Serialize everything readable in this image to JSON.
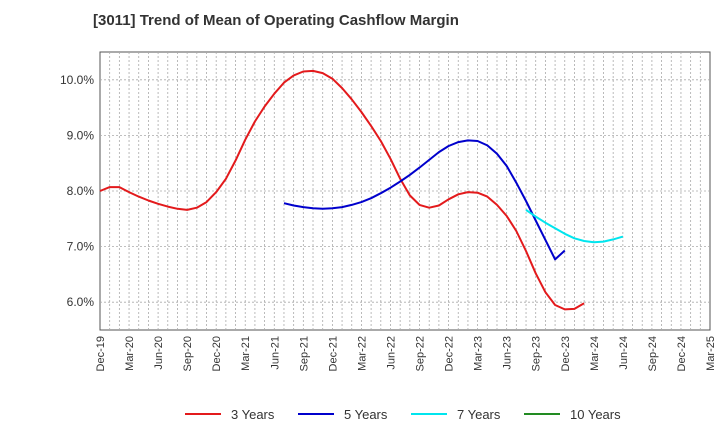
{
  "chart_data": {
    "type": "line",
    "title": "[3011]  Trend of Mean of Operating Cashflow Margin",
    "xlabel": "",
    "ylabel": "",
    "x_ticks": [
      "Dec-19",
      "Mar-20",
      "Jun-20",
      "Sep-20",
      "Dec-20",
      "Mar-21",
      "Jun-21",
      "Sep-21",
      "Dec-21",
      "Mar-22",
      "Jun-22",
      "Sep-22",
      "Dec-22",
      "Mar-23",
      "Jun-23",
      "Sep-23",
      "Dec-23",
      "Mar-24",
      "Jun-24",
      "Sep-24",
      "Dec-24",
      "Mar-25"
    ],
    "y_ticks": [
      "6.0%",
      "7.0%",
      "8.0%",
      "9.0%",
      "10.0%"
    ],
    "y_tick_values": [
      6.0,
      7.0,
      8.0,
      9.0,
      10.0
    ],
    "ylim": [
      5.5,
      10.5
    ],
    "grid": true,
    "legend_position": "bottom",
    "series": [
      {
        "name": "3 Years",
        "color": "#e31a1c",
        "values": [
          [
            "Dec-19",
            8.0
          ],
          [
            "Jan-20",
            8.07
          ],
          [
            "Feb-20",
            8.07
          ],
          [
            "Mar-20",
            7.98
          ],
          [
            "Apr-20",
            7.9
          ],
          [
            "May-20",
            7.83
          ],
          [
            "Jun-20",
            7.77
          ],
          [
            "Jul-20",
            7.72
          ],
          [
            "Aug-20",
            7.68
          ],
          [
            "Sep-20",
            7.66
          ],
          [
            "Oct-20",
            7.7
          ],
          [
            "Nov-20",
            7.8
          ],
          [
            "Dec-20",
            7.98
          ],
          [
            "Jan-21",
            8.22
          ],
          [
            "Feb-21",
            8.55
          ],
          [
            "Mar-21",
            8.92
          ],
          [
            "Apr-21",
            9.25
          ],
          [
            "May-21",
            9.52
          ],
          [
            "Jun-21",
            9.75
          ],
          [
            "Jul-21",
            9.95
          ],
          [
            "Aug-21",
            10.08
          ],
          [
            "Sep-21",
            10.15
          ],
          [
            "Oct-21",
            10.16
          ],
          [
            "Nov-21",
            10.12
          ],
          [
            "Dec-21",
            10.02
          ],
          [
            "Jan-22",
            9.85
          ],
          [
            "Feb-22",
            9.65
          ],
          [
            "Mar-22",
            9.42
          ],
          [
            "Apr-22",
            9.17
          ],
          [
            "May-22",
            8.9
          ],
          [
            "Jun-22",
            8.58
          ],
          [
            "Jul-22",
            8.22
          ],
          [
            "Aug-22",
            7.92
          ],
          [
            "Sep-22",
            7.75
          ],
          [
            "Oct-22",
            7.7
          ],
          [
            "Nov-22",
            7.74
          ],
          [
            "Dec-22",
            7.85
          ],
          [
            "Jan-23",
            7.94
          ],
          [
            "Feb-23",
            7.98
          ],
          [
            "Mar-23",
            7.97
          ],
          [
            "Apr-23",
            7.9
          ],
          [
            "May-23",
            7.75
          ],
          [
            "Jun-23",
            7.55
          ],
          [
            "Jul-23",
            7.28
          ],
          [
            "Aug-23",
            6.92
          ],
          [
            "Sep-23",
            6.52
          ],
          [
            "Oct-23",
            6.18
          ],
          [
            "Nov-23",
            5.95
          ],
          [
            "Dec-23",
            5.87
          ],
          [
            "Jan-24",
            5.88
          ],
          [
            "Feb-24",
            5.98
          ]
        ]
      },
      {
        "name": "5 Years",
        "color": "#0000cc",
        "values": [
          [
            "Jul-21",
            7.78
          ],
          [
            "Aug-21",
            7.74
          ],
          [
            "Sep-21",
            7.71
          ],
          [
            "Oct-21",
            7.69
          ],
          [
            "Nov-21",
            7.68
          ],
          [
            "Dec-21",
            7.69
          ],
          [
            "Jan-22",
            7.71
          ],
          [
            "Feb-22",
            7.75
          ],
          [
            "Mar-22",
            7.8
          ],
          [
            "Apr-22",
            7.87
          ],
          [
            "May-22",
            7.96
          ],
          [
            "Jun-22",
            8.06
          ],
          [
            "Jul-22",
            8.17
          ],
          [
            "Aug-22",
            8.29
          ],
          [
            "Sep-22",
            8.42
          ],
          [
            "Oct-22",
            8.56
          ],
          [
            "Nov-22",
            8.7
          ],
          [
            "Dec-22",
            8.81
          ],
          [
            "Jan-23",
            8.88
          ],
          [
            "Feb-23",
            8.91
          ],
          [
            "Mar-23",
            8.9
          ],
          [
            "Apr-23",
            8.82
          ],
          [
            "May-23",
            8.67
          ],
          [
            "Jun-23",
            8.45
          ],
          [
            "Jul-23",
            8.15
          ],
          [
            "Aug-23",
            7.82
          ],
          [
            "Sep-23",
            7.47
          ],
          [
            "Oct-23",
            7.12
          ],
          [
            "Nov-23",
            6.77
          ],
          [
            "Dec-23",
            6.93
          ]
        ]
      },
      {
        "name": "7 Years",
        "color": "#00e5ee",
        "values": [
          [
            "Aug-23",
            7.66
          ],
          [
            "Sep-23",
            7.54
          ],
          [
            "Oct-23",
            7.43
          ],
          [
            "Nov-23",
            7.33
          ],
          [
            "Dec-23",
            7.23
          ],
          [
            "Jan-24",
            7.15
          ],
          [
            "Feb-24",
            7.1
          ],
          [
            "Mar-24",
            7.08
          ],
          [
            "Apr-24",
            7.09
          ],
          [
            "May-24",
            7.13
          ],
          [
            "Jun-24",
            7.18
          ]
        ]
      },
      {
        "name": "10 Years",
        "color": "#228b22",
        "values": []
      }
    ]
  }
}
